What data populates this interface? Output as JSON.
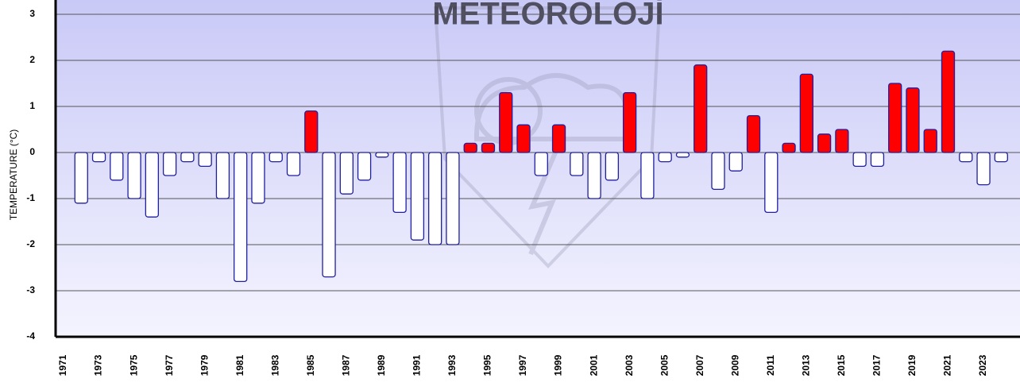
{
  "chart_data": {
    "type": "bar",
    "watermark": "METEOROLOJİ",
    "ylabel": "TEMPERATURE (°C)",
    "categories": [
      "1971",
      null,
      "1973",
      null,
      "1975",
      null,
      "1977",
      null,
      "1979",
      null,
      "1981",
      null,
      "1983",
      null,
      "1985",
      null,
      "1987",
      null,
      "1989",
      null,
      "1991",
      null,
      "1993",
      null,
      "1995",
      null,
      "1997",
      null,
      "1999",
      null,
      "2001",
      null,
      "2003",
      null,
      "2005",
      null,
      "2007",
      null,
      "2009",
      null,
      "2011",
      null,
      "2013",
      null,
      "2015",
      null,
      "2017",
      null,
      "2019",
      null,
      "2021",
      null,
      "2023",
      null
    ],
    "values": [
      null,
      -1.1,
      -0.2,
      -0.6,
      -1.0,
      -1.4,
      -0.5,
      -0.2,
      -0.3,
      -1.0,
      -2.8,
      -1.1,
      -0.2,
      -0.5,
      0.9,
      -2.7,
      -0.9,
      -0.6,
      -0.1,
      -1.3,
      -1.9,
      -2.0,
      -2.0,
      0.2,
      0.2,
      1.3,
      0.6,
      -0.5,
      0.6,
      -0.5,
      -1.0,
      -0.6,
      1.3,
      -1.0,
      -0.2,
      -0.1,
      1.9,
      -0.8,
      -0.4,
      0.8,
      -1.3,
      0.2,
      1.7,
      0.4,
      0.5,
      -0.3,
      -0.3,
      1.5,
      1.4,
      0.5,
      2.2,
      -0.2,
      -0.7,
      -0.2
    ],
    "positive_color": "#ff0000",
    "negative_color": "#ffffff",
    "edge_color": "#1f1fa0",
    "ylim": [
      -4,
      3
    ],
    "yticks": [
      -4,
      -3,
      -2,
      -1,
      0,
      1,
      2,
      3
    ],
    "grid": true
  }
}
